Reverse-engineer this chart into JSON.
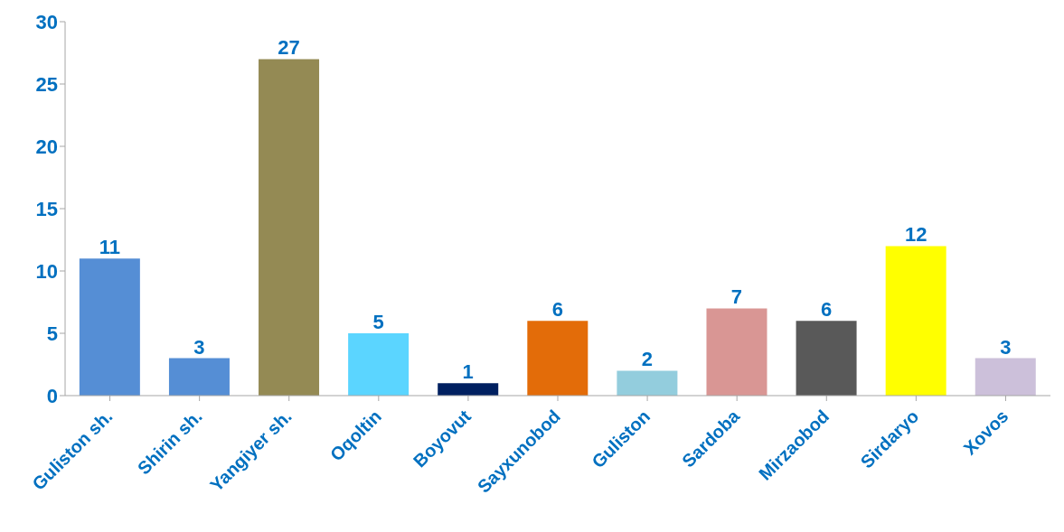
{
  "chart_data": {
    "type": "bar",
    "categories": [
      "Guliston sh.",
      "Shirin sh.",
      "Yangiyer sh.",
      "Oqoltin",
      "Boyovut",
      "Sayxunobod",
      "Guliston",
      "Sardoba",
      "Mirzaobod",
      "Sirdaryo",
      "Xovos"
    ],
    "values": [
      11,
      3,
      27,
      5,
      1,
      6,
      2,
      7,
      6,
      12,
      3
    ],
    "colors": [
      "#558ed5",
      "#558ed5",
      "#948a54",
      "#5bd5ff",
      "#002060",
      "#e36c09",
      "#93cddd",
      "#d99694",
      "#595959",
      "#ffff00",
      "#ccc0da"
    ],
    "ylim": [
      0,
      30
    ],
    "yticks": [
      0,
      5,
      10,
      15,
      20,
      25,
      30
    ],
    "grid": false,
    "data_labels": true
  }
}
